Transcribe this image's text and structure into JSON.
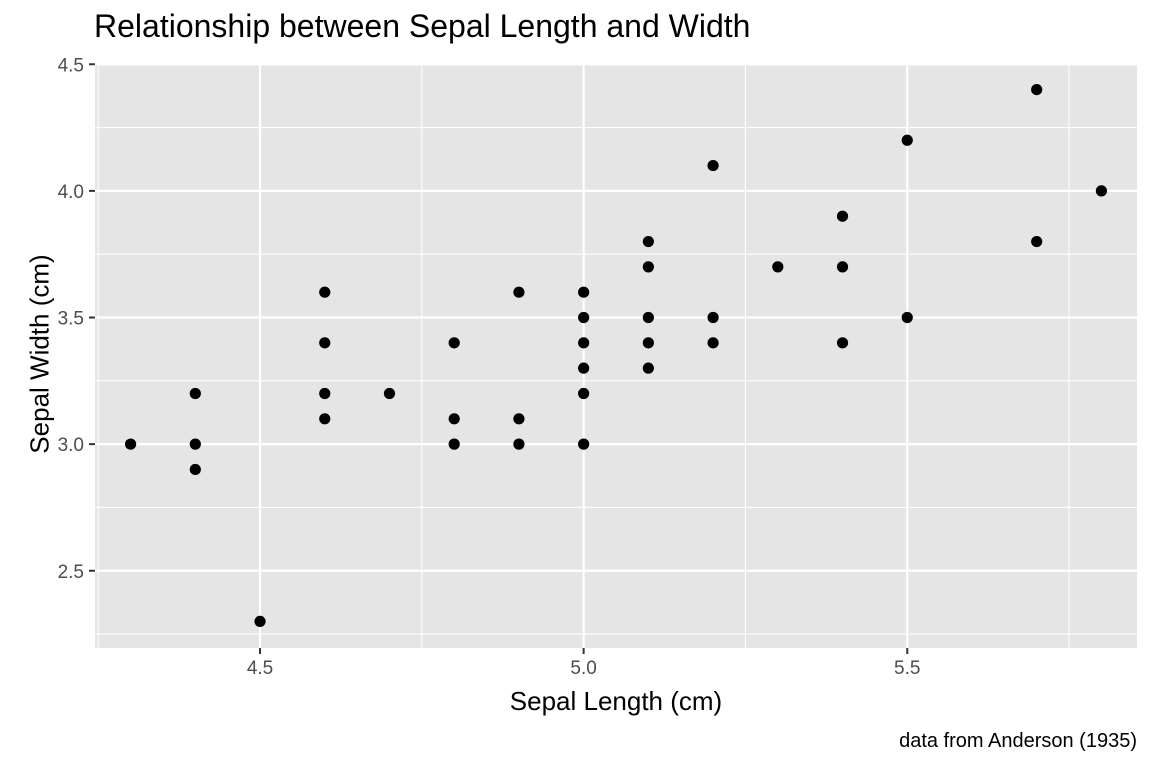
{
  "chart_data": {
    "type": "scatter",
    "title": "Relationship between Sepal Length and Width",
    "xlabel": "Sepal Length (cm)",
    "ylabel": "Sepal Width (cm)",
    "caption": "data from Anderson (1935)",
    "xlim": [
      4.245,
      5.855
    ],
    "ylim": [
      2.195,
      4.505
    ],
    "x_ticks": [
      4.5,
      5.0,
      5.5
    ],
    "x_tick_labels": [
      "4.5",
      "5.0",
      "5.5"
    ],
    "y_ticks": [
      2.5,
      3.0,
      3.5,
      4.0,
      4.5
    ],
    "y_tick_labels": [
      "2.5",
      "3.0",
      "3.5",
      "4.0",
      "4.5"
    ],
    "x_minor_ticks": [
      4.25,
      4.75,
      5.25,
      5.75
    ],
    "y_minor_ticks": [
      2.25,
      2.75,
      3.25,
      3.75,
      4.25
    ],
    "grid": true,
    "colors": {
      "panel_background": "#e5e5e5",
      "grid": "#ffffff",
      "point": "#000000",
      "tick_label": "#4d4d4d",
      "tick": "#333333"
    },
    "points": [
      {
        "x": 4.3,
        "y": 3.0
      },
      {
        "x": 4.4,
        "y": 3.2
      },
      {
        "x": 4.4,
        "y": 3.0
      },
      {
        "x": 4.4,
        "y": 2.9
      },
      {
        "x": 4.5,
        "y": 2.3
      },
      {
        "x": 4.6,
        "y": 3.6
      },
      {
        "x": 4.6,
        "y": 3.4
      },
      {
        "x": 4.6,
        "y": 3.2
      },
      {
        "x": 4.6,
        "y": 3.1
      },
      {
        "x": 4.7,
        "y": 3.2
      },
      {
        "x": 4.8,
        "y": 3.4
      },
      {
        "x": 4.8,
        "y": 3.1
      },
      {
        "x": 4.8,
        "y": 3.0
      },
      {
        "x": 4.9,
        "y": 3.6
      },
      {
        "x": 4.9,
        "y": 3.1
      },
      {
        "x": 4.9,
        "y": 3.0
      },
      {
        "x": 5.0,
        "y": 3.6
      },
      {
        "x": 5.0,
        "y": 3.5
      },
      {
        "x": 5.0,
        "y": 3.4
      },
      {
        "x": 5.0,
        "y": 3.3
      },
      {
        "x": 5.0,
        "y": 3.2
      },
      {
        "x": 5.0,
        "y": 3.0
      },
      {
        "x": 5.1,
        "y": 3.8
      },
      {
        "x": 5.1,
        "y": 3.7
      },
      {
        "x": 5.1,
        "y": 3.5
      },
      {
        "x": 5.1,
        "y": 3.4
      },
      {
        "x": 5.1,
        "y": 3.3
      },
      {
        "x": 5.2,
        "y": 4.1
      },
      {
        "x": 5.2,
        "y": 3.5
      },
      {
        "x": 5.2,
        "y": 3.4
      },
      {
        "x": 5.3,
        "y": 3.7
      },
      {
        "x": 5.4,
        "y": 3.9
      },
      {
        "x": 5.4,
        "y": 3.7
      },
      {
        "x": 5.4,
        "y": 3.4
      },
      {
        "x": 5.5,
        "y": 4.2
      },
      {
        "x": 5.5,
        "y": 3.5
      },
      {
        "x": 5.7,
        "y": 4.4
      },
      {
        "x": 5.7,
        "y": 3.8
      },
      {
        "x": 5.8,
        "y": 4.0
      }
    ]
  }
}
